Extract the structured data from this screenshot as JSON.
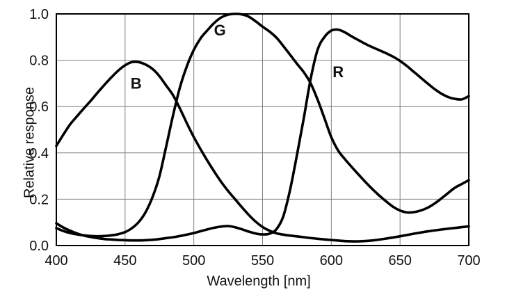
{
  "chart_data": {
    "type": "line",
    "title": "",
    "xlabel": "Wavelength [nm]",
    "ylabel": "Relative response",
    "xlim": [
      400,
      700
    ],
    "ylim": [
      0.0,
      1.0
    ],
    "x_ticks": [
      400,
      450,
      500,
      550,
      600,
      650,
      700
    ],
    "y_ticks": [
      "0.0",
      "0.2",
      "0.4",
      "0.6",
      "0.8",
      "1.0"
    ],
    "grid": true,
    "legend_position": "inline-labels",
    "colors": {
      "curve": "#000000",
      "grid": "#808080",
      "frame": "#000000",
      "text": "#111111",
      "background": "#ffffff"
    },
    "series": [
      {
        "name": "B",
        "label": "B",
        "label_pos": {
          "x": 458,
          "y": 0.7
        },
        "points": [
          [
            400,
            0.43
          ],
          [
            405,
            0.478
          ],
          [
            410,
            0.523
          ],
          [
            415,
            0.558
          ],
          [
            420,
            0.592
          ],
          [
            425,
            0.625
          ],
          [
            430,
            0.66
          ],
          [
            435,
            0.694
          ],
          [
            440,
            0.726
          ],
          [
            445,
            0.755
          ],
          [
            450,
            0.778
          ],
          [
            455,
            0.792
          ],
          [
            460,
            0.792
          ],
          [
            465,
            0.781
          ],
          [
            470,
            0.762
          ],
          [
            475,
            0.731
          ],
          [
            480,
            0.69
          ],
          [
            485,
            0.648
          ],
          [
            490,
            0.59
          ],
          [
            495,
            0.527
          ],
          [
            500,
            0.468
          ],
          [
            505,
            0.415
          ],
          [
            510,
            0.365
          ],
          [
            515,
            0.318
          ],
          [
            520,
            0.274
          ],
          [
            525,
            0.235
          ],
          [
            530,
            0.2
          ],
          [
            535,
            0.165
          ],
          [
            540,
            0.132
          ],
          [
            545,
            0.103
          ],
          [
            550,
            0.08
          ],
          [
            555,
            0.064
          ],
          [
            560,
            0.053
          ],
          [
            565,
            0.047
          ],
          [
            570,
            0.043
          ],
          [
            580,
            0.036
          ],
          [
            590,
            0.029
          ],
          [
            600,
            0.024
          ],
          [
            610,
            0.019
          ],
          [
            620,
            0.018
          ],
          [
            630,
            0.022
          ],
          [
            640,
            0.03
          ],
          [
            650,
            0.04
          ],
          [
            660,
            0.051
          ],
          [
            670,
            0.061
          ],
          [
            680,
            0.069
          ],
          [
            690,
            0.076
          ],
          [
            700,
            0.083
          ]
        ]
      },
      {
        "name": "G",
        "label": "G",
        "label_pos": {
          "x": 519,
          "y": 0.93
        },
        "points": [
          [
            400,
            0.075
          ],
          [
            405,
            0.063
          ],
          [
            410,
            0.054
          ],
          [
            415,
            0.048
          ],
          [
            420,
            0.044
          ],
          [
            425,
            0.041
          ],
          [
            430,
            0.04
          ],
          [
            435,
            0.041
          ],
          [
            440,
            0.044
          ],
          [
            445,
            0.049
          ],
          [
            450,
            0.058
          ],
          [
            455,
            0.075
          ],
          [
            460,
            0.102
          ],
          [
            465,
            0.145
          ],
          [
            470,
            0.21
          ],
          [
            475,
            0.3
          ],
          [
            480,
            0.43
          ],
          [
            485,
            0.565
          ],
          [
            490,
            0.685
          ],
          [
            495,
            0.775
          ],
          [
            500,
            0.845
          ],
          [
            505,
            0.895
          ],
          [
            510,
            0.93
          ],
          [
            515,
            0.962
          ],
          [
            520,
            0.985
          ],
          [
            525,
            0.997
          ],
          [
            530,
            1.0
          ],
          [
            535,
            0.998
          ],
          [
            540,
            0.988
          ],
          [
            545,
            0.968
          ],
          [
            550,
            0.945
          ],
          [
            555,
            0.924
          ],
          [
            560,
            0.898
          ],
          [
            565,
            0.862
          ],
          [
            570,
            0.824
          ],
          [
            575,
            0.785
          ],
          [
            580,
            0.748
          ],
          [
            585,
            0.7
          ],
          [
            590,
            0.63
          ],
          [
            595,
            0.55
          ],
          [
            600,
            0.468
          ],
          [
            605,
            0.41
          ],
          [
            610,
            0.372
          ],
          [
            615,
            0.338
          ],
          [
            620,
            0.305
          ],
          [
            625,
            0.273
          ],
          [
            630,
            0.243
          ],
          [
            635,
            0.215
          ],
          [
            640,
            0.19
          ],
          [
            645,
            0.167
          ],
          [
            650,
            0.151
          ],
          [
            655,
            0.143
          ],
          [
            660,
            0.144
          ],
          [
            665,
            0.151
          ],
          [
            670,
            0.163
          ],
          [
            675,
            0.181
          ],
          [
            680,
            0.203
          ],
          [
            685,
            0.227
          ],
          [
            690,
            0.25
          ],
          [
            695,
            0.266
          ],
          [
            700,
            0.282
          ]
        ]
      },
      {
        "name": "R",
        "label": "R",
        "label_pos": {
          "x": 605,
          "y": 0.75
        },
        "points": [
          [
            400,
            0.096
          ],
          [
            405,
            0.078
          ],
          [
            410,
            0.064
          ],
          [
            415,
            0.052
          ],
          [
            420,
            0.043
          ],
          [
            425,
            0.037
          ],
          [
            430,
            0.032
          ],
          [
            435,
            0.028
          ],
          [
            440,
            0.026
          ],
          [
            445,
            0.024
          ],
          [
            450,
            0.023
          ],
          [
            455,
            0.022
          ],
          [
            460,
            0.022
          ],
          [
            465,
            0.023
          ],
          [
            470,
            0.025
          ],
          [
            475,
            0.028
          ],
          [
            480,
            0.032
          ],
          [
            485,
            0.036
          ],
          [
            490,
            0.041
          ],
          [
            495,
            0.047
          ],
          [
            500,
            0.054
          ],
          [
            505,
            0.062
          ],
          [
            510,
            0.07
          ],
          [
            515,
            0.077
          ],
          [
            520,
            0.082
          ],
          [
            525,
            0.084
          ],
          [
            530,
            0.079
          ],
          [
            535,
            0.07
          ],
          [
            540,
            0.06
          ],
          [
            545,
            0.052
          ],
          [
            550,
            0.048
          ],
          [
            555,
            0.051
          ],
          [
            560,
            0.07
          ],
          [
            565,
            0.125
          ],
          [
            570,
            0.24
          ],
          [
            575,
            0.39
          ],
          [
            580,
            0.55
          ],
          [
            585,
            0.72
          ],
          [
            590,
            0.845
          ],
          [
            595,
            0.9
          ],
          [
            600,
            0.928
          ],
          [
            605,
            0.932
          ],
          [
            610,
            0.92
          ],
          [
            615,
            0.902
          ],
          [
            620,
            0.886
          ],
          [
            625,
            0.87
          ],
          [
            630,
            0.856
          ],
          [
            635,
            0.843
          ],
          [
            640,
            0.83
          ],
          [
            645,
            0.815
          ],
          [
            650,
            0.797
          ],
          [
            655,
            0.775
          ],
          [
            660,
            0.75
          ],
          [
            665,
            0.725
          ],
          [
            670,
            0.7
          ],
          [
            675,
            0.676
          ],
          [
            680,
            0.656
          ],
          [
            685,
            0.641
          ],
          [
            690,
            0.633
          ],
          [
            695,
            0.631
          ],
          [
            700,
            0.645
          ]
        ]
      }
    ]
  }
}
